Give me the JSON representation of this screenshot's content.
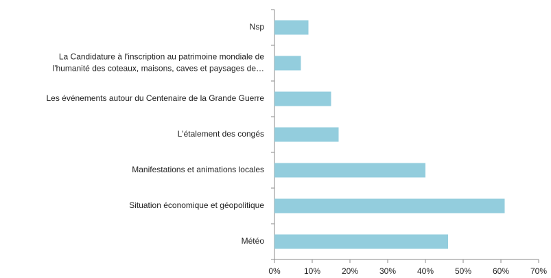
{
  "chart_data": {
    "type": "hbar",
    "categories": [
      "Nsp",
      "La Candidature à l'inscription au patrimoine mondiale de\nl'humanité des coteaux, maisons, caves et paysages de…",
      "Les événements autour du Centenaire de la Grande Guerre",
      "L'étalement des congés",
      "Manifestations et animations locales",
      "Situation économique et géopolitique",
      "Météo"
    ],
    "values": [
      9,
      7,
      15,
      17,
      40,
      61,
      46
    ],
    "color": "#93cddd",
    "xlim": [
      0,
      70
    ],
    "xticks": [
      {
        "value": 0,
        "label": "0%"
      },
      {
        "value": 10,
        "label": "10%"
      },
      {
        "value": 20,
        "label": "20%"
      },
      {
        "value": 30,
        "label": "30%"
      },
      {
        "value": 40,
        "label": "40%"
      },
      {
        "value": 50,
        "label": "50%"
      },
      {
        "value": 60,
        "label": "60%"
      },
      {
        "value": 70,
        "label": "70%"
      }
    ],
    "grid": false
  }
}
